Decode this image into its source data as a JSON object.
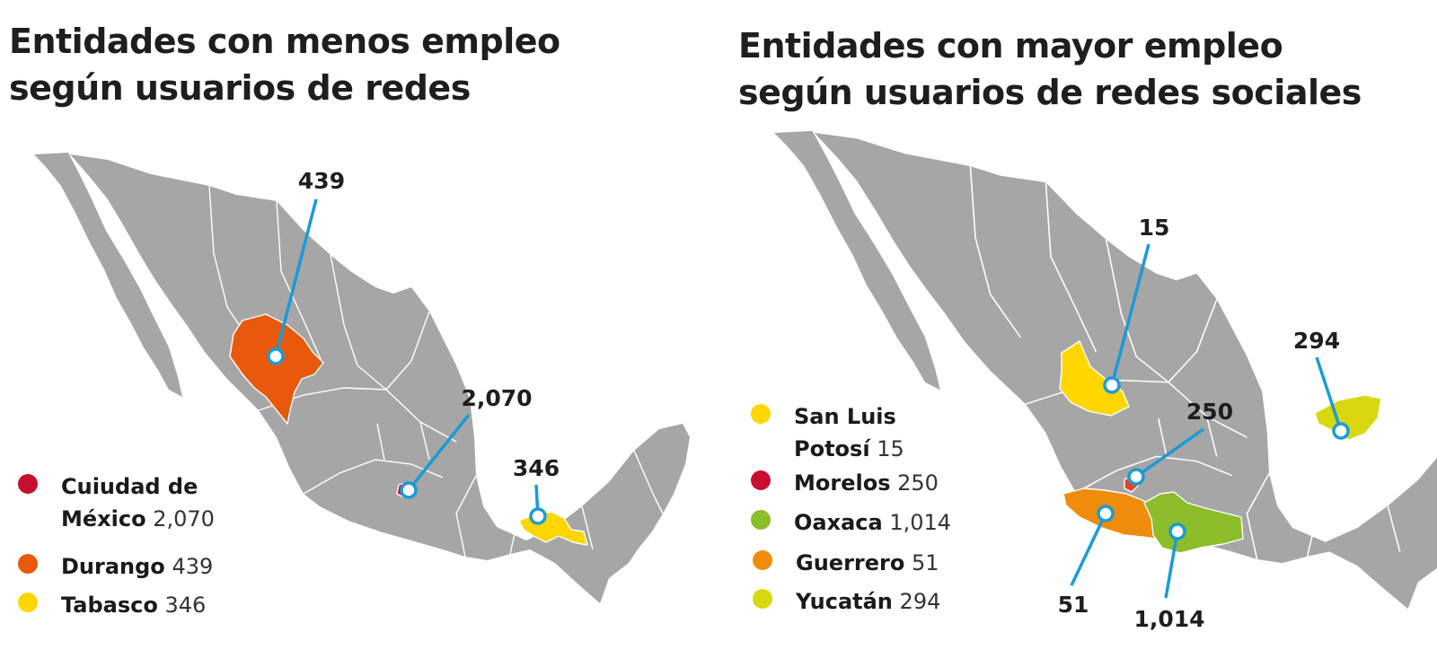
{
  "left_panel": {
    "title_line1": "Entidades con menos empleo",
    "title_line2": "según usuarios de redes",
    "callouts": [
      {
        "label": "439",
        "state": "Durango"
      },
      {
        "label": "2,070",
        "state": "Cuiudad de México"
      },
      {
        "label": "346",
        "state": "Tabasco"
      }
    ],
    "legend": [
      {
        "name_line1": "Cuiudad de",
        "name_line2": "México",
        "value": "2,070",
        "color": "#c8102e"
      },
      {
        "name": "Durango",
        "value": "439",
        "color": "#e8590c"
      },
      {
        "name": "Tabasco",
        "value": "346",
        "color": "#ffd600"
      }
    ]
  },
  "right_panel": {
    "title_line1": "Entidades con mayor empleo",
    "title_line2": "según usuarios de redes sociales",
    "callouts": [
      {
        "label": "15",
        "state": "San Luis Potosí"
      },
      {
        "label": "294",
        "state": "Yucatán"
      },
      {
        "label": "250",
        "state": "Morelos"
      },
      {
        "label": "51",
        "state": "Guerrero"
      },
      {
        "label": "1,014",
        "state": "Oaxaca"
      }
    ],
    "legend": [
      {
        "name_line1": "San Luis",
        "name_line2": "Potosí",
        "value": "15",
        "color": "#ffd600"
      },
      {
        "name": "Morelos",
        "value": "250",
        "color": "#c8102e"
      },
      {
        "name": "Oaxaca",
        "value": "1,014",
        "color": "#8cbd2a"
      },
      {
        "name": "Guerrero",
        "value": "51",
        "color": "#ef8c0b"
      },
      {
        "name": "Yucatán",
        "value": "294",
        "color": "#d9d70f"
      }
    ]
  },
  "colors": {
    "base_map": "#a6a6a6",
    "callout": "#1a9bd7",
    "cdmx": "#c8102e",
    "durango": "#e8590c",
    "tabasco": "#ffd600",
    "slp": "#ffd600",
    "morelos": "#c8102e",
    "oaxaca": "#8cbd2a",
    "guerrero": "#ef8c0b",
    "yucatan": "#d9d70f"
  }
}
